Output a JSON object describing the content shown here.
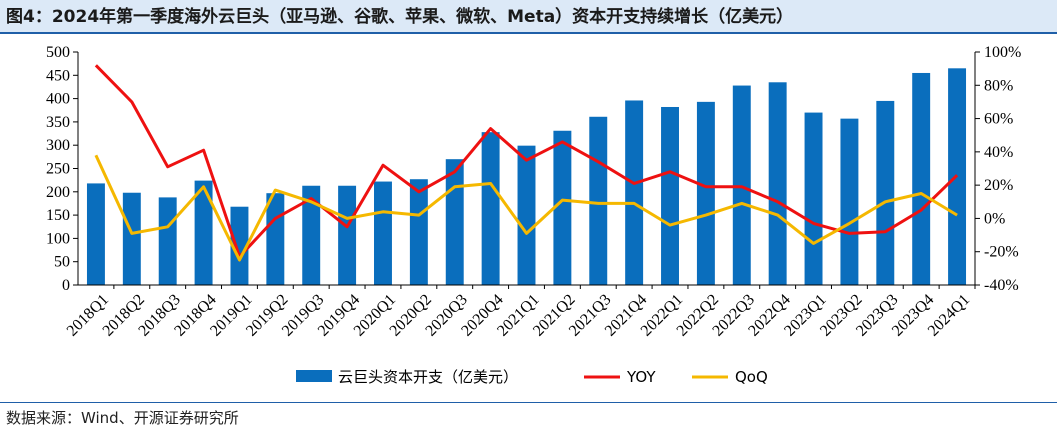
{
  "title": "图4：2024年第一季度海外云巨头（亚马逊、谷歌、苹果、微软、Meta）资本开支持续增长（亿美元）",
  "source": "数据来源：Wind、开源证券研究所",
  "colors": {
    "bar": "#0a6ebd",
    "yoy": "#ee1111",
    "qoq": "#f5b800",
    "header_bg": "#dce9f7",
    "header_line": "#1f5fa8"
  },
  "chart_data": {
    "type": "bar+line",
    "categories": [
      "2018Q1",
      "2018Q2",
      "2018Q3",
      "2018Q4",
      "2019Q1",
      "2019Q2",
      "2019Q3",
      "2019Q4",
      "2020Q1",
      "2020Q2",
      "2020Q3",
      "2020Q4",
      "2021Q1",
      "2021Q2",
      "2021Q3",
      "2021Q4",
      "2022Q1",
      "2022Q2",
      "2022Q3",
      "2022Q4",
      "2023Q1",
      "2023Q2",
      "2023Q3",
      "2023Q4",
      "2024Q1"
    ],
    "left_axis": {
      "ylim": [
        0,
        500
      ],
      "ticks": [
        0,
        50,
        100,
        150,
        200,
        250,
        300,
        350,
        400,
        450,
        500
      ]
    },
    "right_axis": {
      "ylim": [
        -40,
        100
      ],
      "ticks": [
        -40,
        -20,
        0,
        20,
        40,
        60,
        80,
        100
      ],
      "unit": "%"
    },
    "series": [
      {
        "name": "云巨头资本开支（亿美元）",
        "type": "bar",
        "axis": "left",
        "values": [
          218,
          198,
          188,
          224,
          168,
          197,
          213,
          213,
          222,
          227,
          270,
          328,
          299,
          331,
          361,
          396,
          382,
          393,
          428,
          435,
          370,
          357,
          395,
          455,
          465
        ]
      },
      {
        "name": "YOY",
        "type": "line",
        "axis": "right",
        "values": [
          92,
          70,
          31,
          41,
          -23,
          0,
          12,
          -5,
          32,
          16,
          28,
          54,
          35,
          46,
          34,
          21,
          28,
          19,
          19,
          10,
          -3,
          -9,
          -8,
          5,
          26
        ]
      },
      {
        "name": "QoQ",
        "type": "line",
        "axis": "right",
        "values": [
          38,
          -9,
          -5,
          19,
          -25,
          17,
          10,
          0,
          4,
          2,
          19,
          21,
          -9,
          11,
          9,
          9,
          -4,
          2,
          9,
          2,
          -15,
          -3,
          10,
          15,
          2
        ]
      }
    ]
  }
}
